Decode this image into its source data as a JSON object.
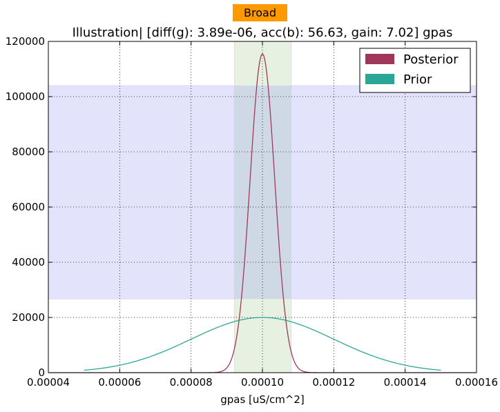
{
  "badge": {
    "label": "Broad"
  },
  "chart_data": {
    "type": "line",
    "title": "Illustration|  [diff(g): 3.89e-06, acc(b): 56.63, gain: 7.02] gpas",
    "xlabel": "gpas [uS/cm^2]",
    "ylabel": "",
    "xlim": [
      4e-05,
      0.00016
    ],
    "ylim": [
      0,
      120000
    ],
    "xticks": [
      4e-05,
      6e-05,
      8e-05,
      0.0001,
      0.00012,
      0.00014,
      0.00016
    ],
    "xtick_labels": [
      "0.00004",
      "0.00006",
      "0.00008",
      "0.00010",
      "0.00012",
      "0.00014",
      "0.00016"
    ],
    "yticks": [
      0,
      20000,
      40000,
      60000,
      80000,
      100000,
      120000
    ],
    "ytick_labels": [
      "0",
      "20000",
      "40000",
      "60000",
      "80000",
      "100000",
      "120000"
    ],
    "grid": true,
    "legend_position": "top-right",
    "horizontal_band": {
      "y_range": [
        26700,
        104000
      ],
      "color": "#e3e3fb"
    },
    "vertical_band": {
      "x_range": [
        9.21e-05,
        0.0001081
      ],
      "color": "#e3efdc"
    },
    "series": [
      {
        "name": "Posterior",
        "color": "#a0365a",
        "mean": 0.0001,
        "sd": 3.45e-06,
        "peak": 115500,
        "x_range": [
          4e-05,
          0.00016
        ]
      },
      {
        "name": "Prior",
        "color": "#2aa697",
        "mean": 0.0001,
        "sd": 2e-05,
        "peak": 20000,
        "x_range": [
          5e-05,
          0.00015
        ]
      }
    ]
  }
}
